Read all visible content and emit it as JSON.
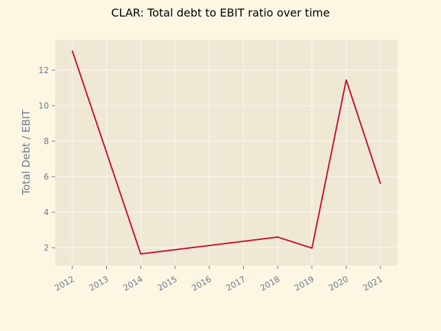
{
  "chart_data": {
    "type": "line",
    "title": "CLAR: Total debt to EBIT ratio over time",
    "xlabel": "",
    "ylabel": "Total Debt / EBIT",
    "x": [
      2012,
      2014,
      2018,
      2019,
      2020,
      2021
    ],
    "series": [
      {
        "values": [
          13.1,
          1.65,
          2.6,
          1.98,
          11.45,
          5.6
        ]
      }
    ],
    "xticks": [
      "2012",
      "2013",
      "2014",
      "2015",
      "2016",
      "2017",
      "2018",
      "2019",
      "2020",
      "2021"
    ],
    "yticks": [
      "2",
      "4",
      "6",
      "8",
      "10",
      "12"
    ],
    "xlim": [
      2011.5,
      2021.5
    ],
    "ylim": [
      1.0,
      13.7
    ],
    "grid": true,
    "legend": "none",
    "colors": {
      "line": "#c8102e",
      "plot_bg": "#eee8d5",
      "page_bg": "#fdf6e3",
      "grid": "#fbf8ef",
      "tick_text": "#6b7b8c"
    }
  }
}
